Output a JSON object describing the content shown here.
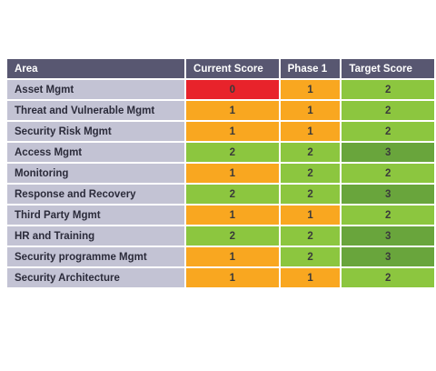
{
  "chart_data": {
    "type": "table",
    "columns": [
      "Area",
      "Current Score",
      "Phase 1",
      "Target Score"
    ],
    "rows": [
      {
        "area": "Asset Mgmt",
        "current": 0,
        "phase1": 1,
        "target": 2
      },
      {
        "area": "Threat and Vulnerable Mgmt",
        "current": 1,
        "phase1": 1,
        "target": 2
      },
      {
        "area": "Security Risk Mgmt",
        "current": 1,
        "phase1": 1,
        "target": 2
      },
      {
        "area": "Access Mgmt",
        "current": 2,
        "phase1": 2,
        "target": 3
      },
      {
        "area": "Monitoring",
        "current": 1,
        "phase1": 2,
        "target": 2
      },
      {
        "area": "Response and Recovery",
        "current": 2,
        "phase1": 2,
        "target": 3
      },
      {
        "area": "Third Party Mgmt",
        "current": 1,
        "phase1": 1,
        "target": 2
      },
      {
        "area": "HR and Training",
        "current": 2,
        "phase1": 2,
        "target": 3
      },
      {
        "area": "Security programme Mgmt",
        "current": 1,
        "phase1": 2,
        "target": 3
      },
      {
        "area": "Security Architecture",
        "current": 1,
        "phase1": 1,
        "target": 2
      }
    ],
    "score_colors": {
      "0": "#e8232b",
      "1": "#f9a720",
      "2": "#8cc63f",
      "3": "#69a53c"
    },
    "header_color": "#585771",
    "area_cell_color": "#c3c3d4"
  }
}
